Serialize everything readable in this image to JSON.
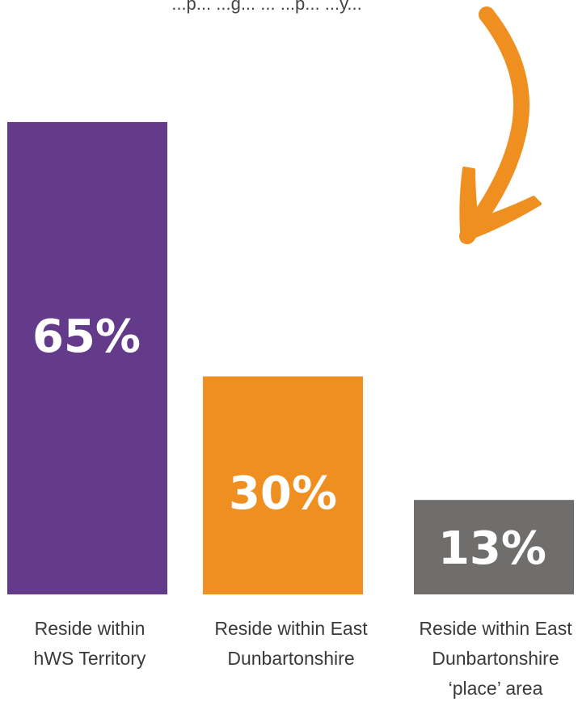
{
  "header": {
    "partial_text": "...p... ...g... ... ...p... ...y..."
  },
  "colors": {
    "arrow": "#ef8f1f",
    "text": "#3a3a3a"
  },
  "chart_data": {
    "type": "bar",
    "title": "",
    "xlabel": "",
    "ylabel": "",
    "ylim": [
      0,
      72
    ],
    "grid": false,
    "legend": "none",
    "categories": [
      {
        "lines": [
          "Reside within",
          "hWS Territory"
        ],
        "color": "#643a8a"
      },
      {
        "lines": [
          "Reside within East",
          "Dunbartonshire"
        ],
        "color": "#ef8f1f"
      },
      {
        "lines": [
          "Reside within East",
          "Dunbartonshire",
          "‘place’ area"
        ],
        "color": "#6f6e6c"
      }
    ],
    "values": [
      65,
      30,
      13
    ],
    "value_labels": [
      "65%",
      "30%",
      "13%"
    ],
    "annotations": [
      "curved-arrow"
    ]
  }
}
